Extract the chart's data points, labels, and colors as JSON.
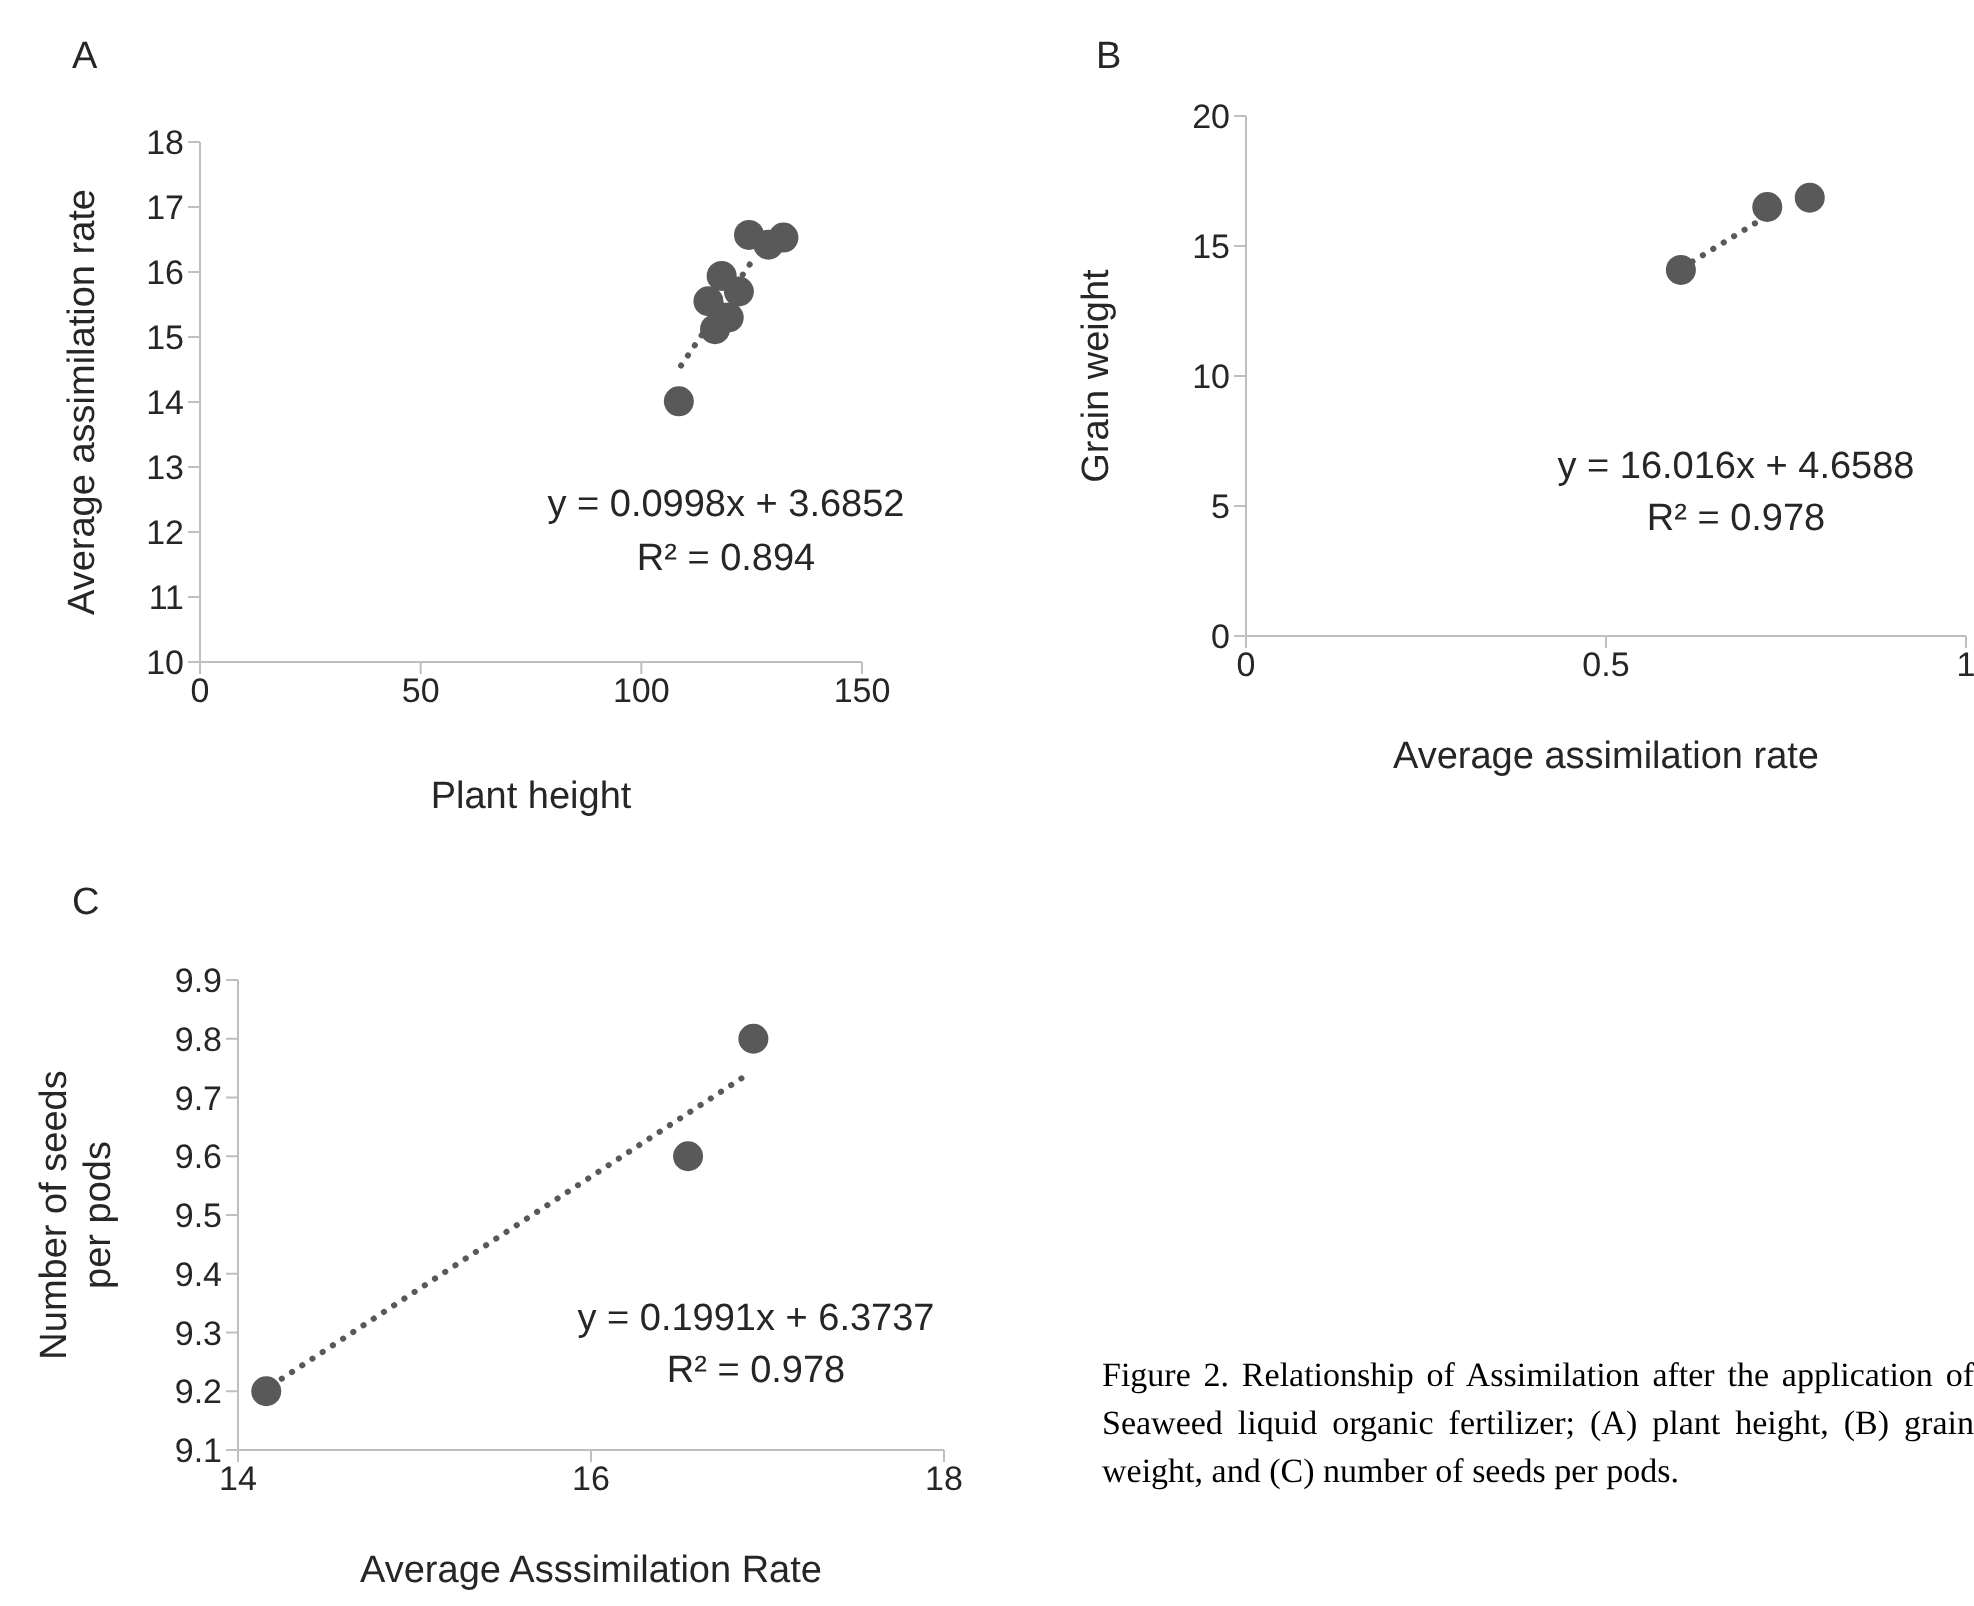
{
  "chart_data": [
    {
      "type": "scatter",
      "title": "A",
      "xlabel": "Plant height",
      "ylabel": "Average assimilation rate",
      "xlim": [
        0,
        150
      ],
      "xticks": [
        0,
        50,
        100,
        150
      ],
      "ylim": [
        10,
        18
      ],
      "yticks": [
        10,
        11,
        12,
        13,
        14,
        15,
        16,
        17,
        18
      ],
      "grid": false,
      "legend": false,
      "marker": "circle",
      "series": [
        {
          "type": "scatter",
          "color": "#595959",
          "x": [
            108.5,
            115.2,
            116.7,
            118.2,
            119.8,
            122.1,
            124.4,
            128.8,
            132.2
          ],
          "values": [
            14.01,
            15.55,
            15.12,
            15.94,
            15.3,
            15.7,
            16.57,
            16.42,
            16.53
          ]
        },
        {
          "type": "line",
          "color": "#595959",
          "line_style": "dotted",
          "marker": "none",
          "x": [
            109,
            125
          ],
          "values": [
            14.56,
            16.16
          ]
        }
      ],
      "annotations": [
        "y = 0.0998x + 3.6852",
        "R² = 0.894"
      ]
    },
    {
      "type": "scatter",
      "title": "B",
      "xlabel": "Average assimilation rate",
      "ylabel": "Grain weight",
      "xlim": [
        0,
        1
      ],
      "xticks": [
        0,
        0.5,
        1
      ],
      "ylim": [
        0,
        20
      ],
      "yticks": [
        0,
        5,
        10,
        15,
        20
      ],
      "grid": false,
      "legend": false,
      "marker": "circle",
      "series": [
        {
          "type": "scatter",
          "color": "#595959",
          "x": [
            0.604,
            0.724,
            0.783
          ],
          "values": [
            14.08,
            16.5,
            16.86
          ]
        },
        {
          "type": "line",
          "color": "#595959",
          "line_style": "dotted",
          "marker": "none",
          "x": [
            0.62,
            0.75
          ],
          "values": [
            14.4,
            16.6
          ]
        }
      ],
      "annotations": [
        "y = 16.016x + 4.6588",
        "R² = 0.978"
      ]
    },
    {
      "type": "scatter",
      "title": "C",
      "xlabel": "Average Asssimilation Rate",
      "ylabel": "Number of seeds\nper pods",
      "xlim": [
        14,
        18
      ],
      "xticks": [
        14,
        16,
        18
      ],
      "ylim": [
        9.1,
        9.9
      ],
      "yticks": [
        9.1,
        9.2,
        9.3,
        9.4,
        9.5,
        9.6,
        9.7,
        9.8,
        9.9
      ],
      "grid": false,
      "legend": false,
      "marker": "circle",
      "series": [
        {
          "type": "scatter",
          "color": "#595959",
          "x": [
            14.16,
            16.55,
            16.92
          ],
          "values": [
            9.2,
            9.6,
            9.8
          ]
        },
        {
          "type": "line",
          "color": "#595959",
          "line_style": "dotted",
          "marker": "none",
          "x": [
            14.19,
            16.89
          ],
          "values": [
            9.21,
            9.74
          ]
        }
      ],
      "annotations": [
        "y = 0.1991x + 6.3737",
        "R² = 0.978",
        "Figure 2. Relationship of Assimilation after the application of Seaweed liquid organic fertilizer; (A) plant height, (B) grain weight, and (C) number of seeds per pods."
      ]
    }
  ]
}
